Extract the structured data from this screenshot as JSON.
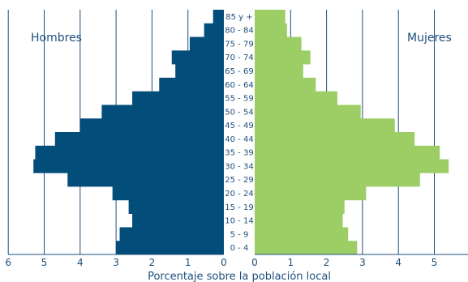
{
  "chart_data": {
    "type": "bar",
    "orientation": "horizontal-pyramid",
    "xlabel": "Porcentaje sobre la población local",
    "left_label": "Hombres",
    "right_label": "Mujeres",
    "xlim": [
      0,
      6
    ],
    "grid": "vertical",
    "categories": [
      "0 - 4",
      "5 - 9",
      "10 - 14",
      "15 - 19",
      "20 - 24",
      "25 - 29",
      "30 - 34",
      "35 - 39",
      "40 - 44",
      "45 - 49",
      "50 - 54",
      "55 - 59",
      "60 - 64",
      "65 - 69",
      "70 - 74",
      "75 - 79",
      "80 - 84",
      "85 y +"
    ],
    "series": [
      {
        "name": "Hombres",
        "values": [
          3.0,
          2.9,
          2.55,
          2.65,
          3.1,
          4.35,
          5.3,
          5.25,
          4.7,
          4.0,
          3.4,
          2.55,
          1.8,
          1.35,
          1.45,
          0.95,
          0.55,
          0.3
        ]
      },
      {
        "name": "Mujeres",
        "values": [
          2.85,
          2.6,
          2.45,
          2.5,
          3.1,
          4.6,
          5.4,
          5.15,
          4.45,
          3.9,
          2.95,
          2.3,
          1.7,
          1.35,
          1.55,
          1.3,
          0.9,
          0.85
        ]
      }
    ],
    "tick_labels": [
      "6",
      "5",
      "4",
      "3",
      "2",
      "1",
      "0",
      "0",
      "1",
      "2",
      "3",
      "4",
      "5"
    ],
    "colors": {
      "Hombres": "#034d7a",
      "Mujeres": "#9dcd65",
      "grid": "#1d4f7c",
      "text": "#1d4f7c"
    }
  }
}
